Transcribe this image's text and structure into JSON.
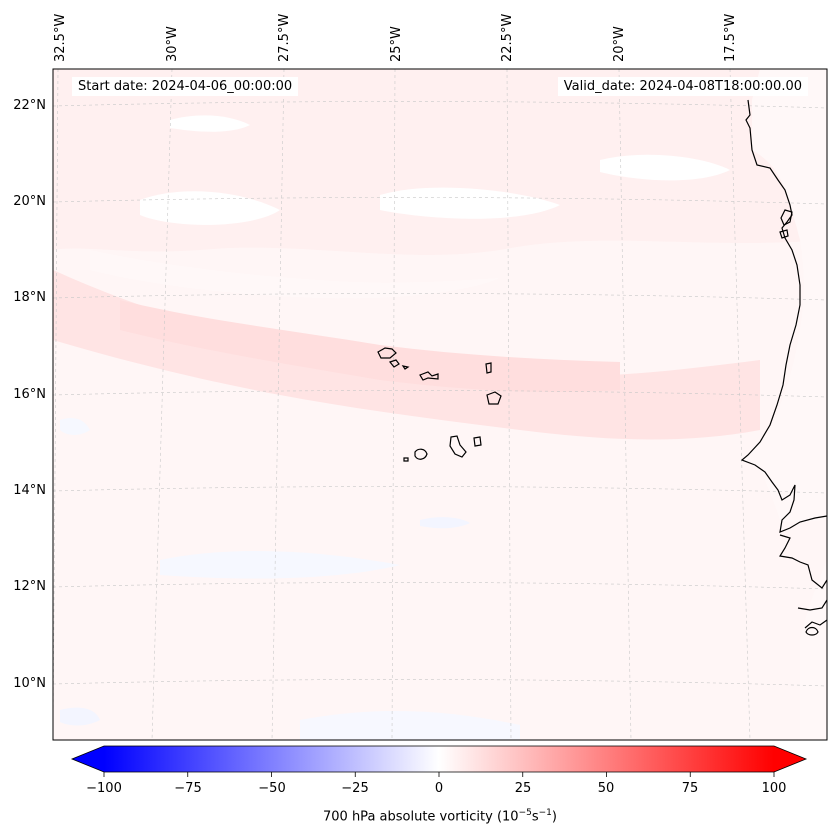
{
  "map": {
    "start_date": "Start date: 2024-04-06_00:00:00",
    "valid_date": "Valid_date: 2024-04-08T18:00:00.00",
    "lon_labels": [
      "32.5°W",
      "30°W",
      "27.5°W",
      "25°W",
      "22.5°W",
      "20°W",
      "17.5°W"
    ],
    "lat_labels": [
      "22°N",
      "20°N",
      "18°N",
      "16°N",
      "14°N",
      "12°N",
      "10°N"
    ],
    "extent": {
      "lon_min": -32.5,
      "lon_max": -15.8,
      "lat_min": 8.9,
      "lat_max": 22.7
    },
    "coastline_color": "#000000",
    "gridline_color": "#bbbbbb",
    "field_colors": {
      "pale_red": "#fff2f2",
      "light_red": "#ffe5e5",
      "pale_blue": "#f6f8ff"
    },
    "regions": [
      "Cape Verde islands",
      "West African coast"
    ]
  },
  "colorbar": {
    "ticks": [
      "−100",
      "−75",
      "−50",
      "−25",
      "0",
      "25",
      "50",
      "75",
      "100"
    ],
    "min": -100,
    "max": 100,
    "label_main": "700 hPa absolute vorticity (10",
    "label_exp1": "−5",
    "label_mid": "s",
    "label_exp2": "−1",
    "label_end": ")",
    "colors": {
      "neg": "#0000ff",
      "zero": "#ffffff",
      "pos": "#ff0000"
    }
  }
}
